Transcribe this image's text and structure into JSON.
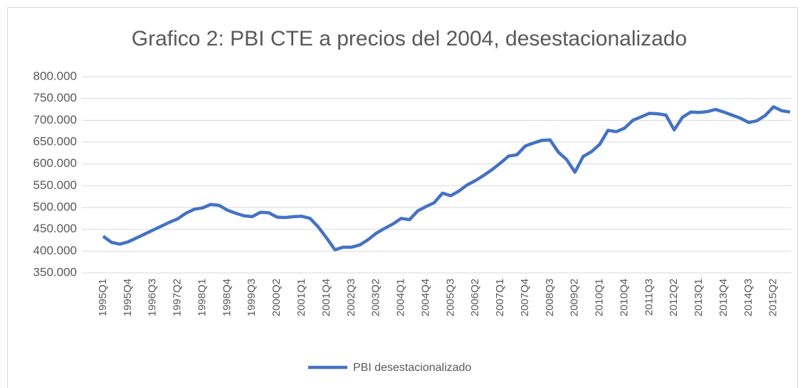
{
  "chart_data": {
    "type": "line",
    "title": "Grafico 2: PBI CTE a precios del 2004, desestacionalizado",
    "categories": [
      "1995Q1",
      null,
      null,
      "1995Q4",
      null,
      null,
      "1996Q3",
      null,
      null,
      "1997Q2",
      null,
      null,
      "1998Q1",
      null,
      null,
      "1998Q4",
      null,
      null,
      "1999Q3",
      null,
      null,
      "2000Q2",
      null,
      null,
      "2001Q1",
      null,
      null,
      "2001Q4",
      null,
      null,
      "2002Q3",
      null,
      null,
      "2003Q2",
      null,
      null,
      "2004Q1",
      null,
      null,
      "2004Q4",
      null,
      null,
      "2005Q3",
      null,
      null,
      "2006Q2",
      null,
      null,
      "2007Q1",
      null,
      null,
      "2007Q4",
      null,
      null,
      "2008Q3",
      null,
      null,
      "2009Q2",
      null,
      null,
      "2010Q1",
      null,
      null,
      "2010Q4",
      null,
      null,
      "2011Q3",
      null,
      null,
      "2012Q2",
      null,
      null,
      "2013Q1",
      null,
      null,
      "2013Q4",
      null,
      null,
      "2014Q3",
      null,
      null,
      "2015Q2",
      null,
      null
    ],
    "series": [
      {
        "name": "PBI desestacionalizado",
        "color": "#4472c4",
        "values": [
          434000,
          420000,
          416000,
          421000,
          430000,
          439000,
          448000,
          457000,
          466000,
          474000,
          487000,
          496000,
          499000,
          507000,
          505000,
          494000,
          487000,
          481000,
          479000,
          489000,
          488000,
          478000,
          477000,
          479000,
          480000,
          475000,
          455000,
          430000,
          403000,
          409000,
          409000,
          414000,
          426000,
          441000,
          452000,
          462000,
          475000,
          472000,
          492000,
          502000,
          511000,
          533000,
          527000,
          538000,
          552000,
          562000,
          574000,
          587000,
          602000,
          618000,
          621000,
          641000,
          648000,
          654000,
          655000,
          627000,
          610000,
          581000,
          617000,
          628000,
          645000,
          677000,
          674000,
          682000,
          700000,
          708000,
          716000,
          715000,
          712000,
          678000,
          707000,
          719000,
          718000,
          720000,
          725000,
          719000,
          712000,
          705000,
          695000,
          699000,
          711000,
          731000,
          722000,
          719000
        ]
      }
    ],
    "ylim": [
      350000,
      800000
    ],
    "yticks": [
      {
        "value": 350000,
        "label": "350.000"
      },
      {
        "value": 400000,
        "label": "400.000"
      },
      {
        "value": 450000,
        "label": "450.000"
      },
      {
        "value": 500000,
        "label": "500.000"
      },
      {
        "value": 550000,
        "label": "550.000"
      },
      {
        "value": 600000,
        "label": "600.000"
      },
      {
        "value": 650000,
        "label": "650.000"
      },
      {
        "value": 700000,
        "label": "700.000"
      },
      {
        "value": 750000,
        "label": "750.000"
      },
      {
        "value": 800000,
        "label": "800.000"
      }
    ],
    "grid": true,
    "legend": "bottom"
  }
}
